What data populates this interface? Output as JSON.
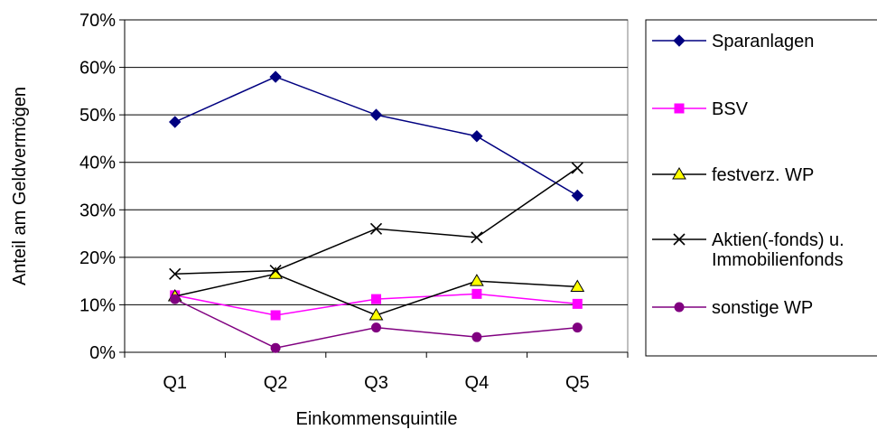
{
  "chart_data": {
    "type": "line",
    "title": "",
    "xlabel": "Einkommensquintile",
    "ylabel": "Anteil am Geldvermögen",
    "categories": [
      "Q1",
      "Q2",
      "Q3",
      "Q4",
      "Q5"
    ],
    "ylim": [
      0,
      70
    ],
    "yticks": [
      0,
      10,
      20,
      30,
      40,
      50,
      60,
      70
    ],
    "ytick_labels": [
      "0%",
      "10%",
      "20%",
      "30%",
      "40%",
      "50%",
      "60%",
      "70%"
    ],
    "grid": true,
    "legend_position": "right",
    "series": [
      {
        "name": "Sparanlagen",
        "values": [
          48.5,
          58,
          50,
          45.5,
          33
        ],
        "color": "#000080",
        "marker": "diamond"
      },
      {
        "name": "BSV",
        "values": [
          12,
          7.8,
          11.2,
          12.3,
          10.2
        ],
        "color": "#FF00FF",
        "marker": "square"
      },
      {
        "name": "festverz. WP",
        "values": [
          11.8,
          16.5,
          7.8,
          15,
          13.8
        ],
        "color": "#000000",
        "marker_fill": "#FFFF00",
        "marker": "triangle"
      },
      {
        "name": "Aktien(-fonds) u.\nImmobilienfonds",
        "values": [
          16.5,
          17.2,
          26,
          24.2,
          38.8
        ],
        "color": "#000000",
        "marker": "x"
      },
      {
        "name": "sonstige WP",
        "values": [
          11.2,
          0.9,
          5.2,
          3.2,
          5.2
        ],
        "color": "#800080",
        "marker": "circle"
      }
    ]
  }
}
